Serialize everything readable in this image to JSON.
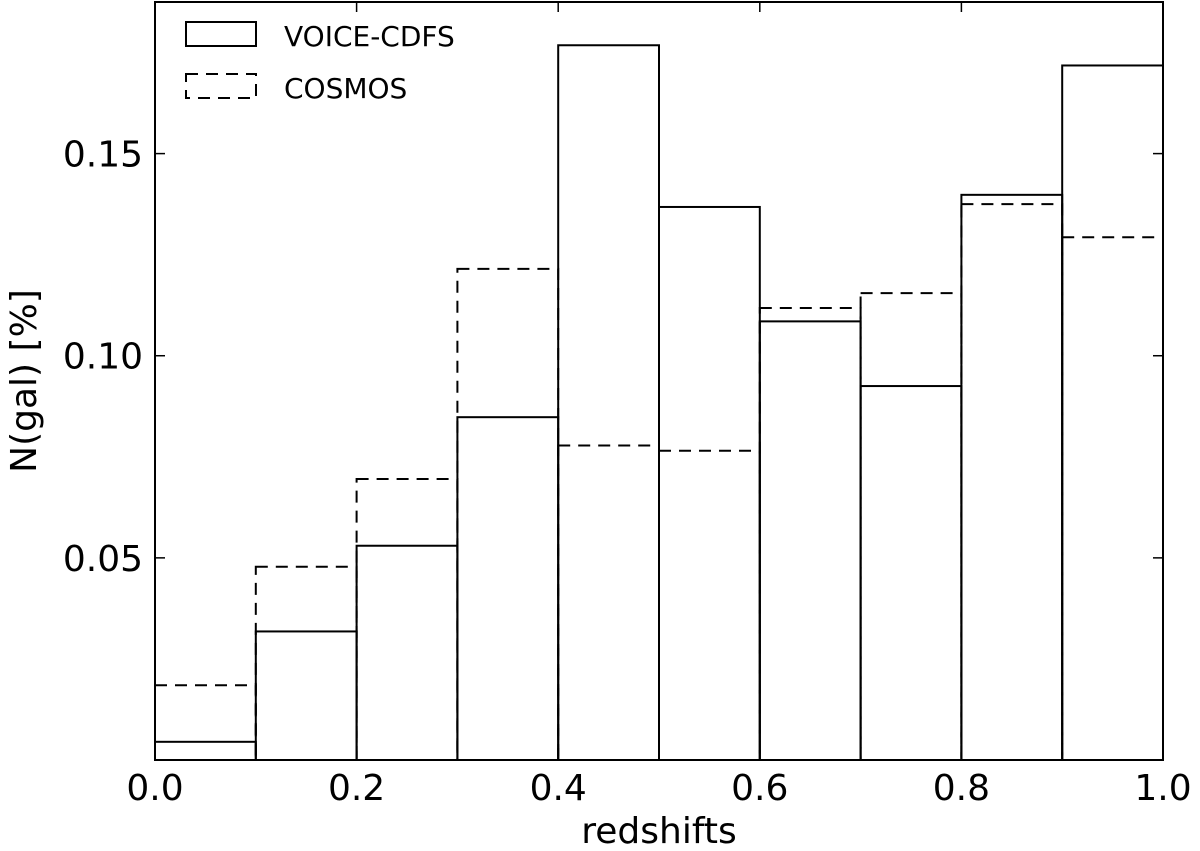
{
  "chart_data": {
    "type": "histogram",
    "xlabel": "redshifts",
    "ylabel": "N(gal) [%]",
    "xlim": [
      0.0,
      1.0
    ],
    "ylim": [
      0.0,
      0.1875
    ],
    "x_ticks": [
      "0.0",
      "0.2",
      "0.4",
      "0.6",
      "0.8",
      "1.0"
    ],
    "y_ticks": [
      "0.05",
      "0.10",
      "0.15"
    ],
    "bin_edges": [
      0.0,
      0.1,
      0.2,
      0.3,
      0.4,
      0.5,
      0.6,
      0.7,
      0.8,
      0.9,
      1.0
    ],
    "legend_position": "top-left",
    "grid": false,
    "series": [
      {
        "name": "VOICE-CDFS",
        "style": "solid",
        "color": "#000000",
        "values": [
          0.0045,
          0.0318,
          0.053,
          0.0848,
          0.1768,
          0.1368,
          0.1085,
          0.0925,
          0.1398,
          0.1718
        ]
      },
      {
        "name": "COSMOS",
        "style": "dashed",
        "color": "#000000",
        "values": [
          0.0185,
          0.0478,
          0.0695,
          0.1215,
          0.0778,
          0.0765,
          0.1118,
          0.1155,
          0.1375,
          0.1293
        ]
      }
    ]
  }
}
